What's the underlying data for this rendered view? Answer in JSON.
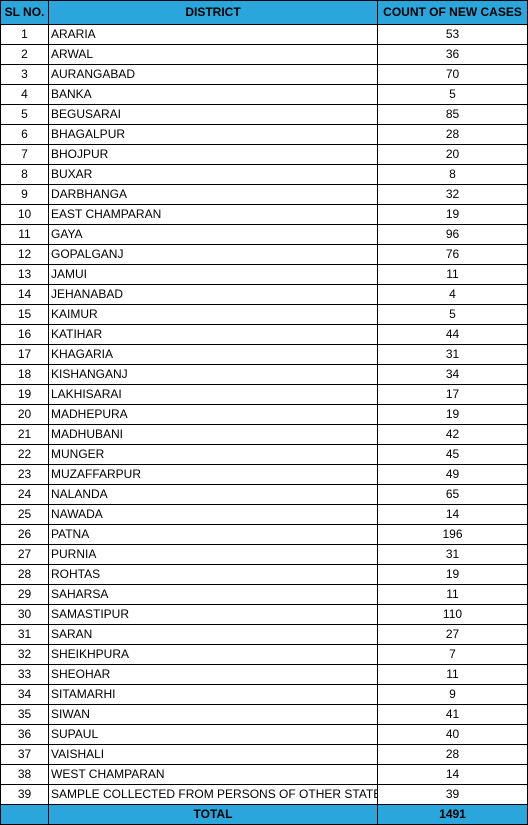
{
  "table": {
    "headers": {
      "sl": "SL NO.",
      "district": "DISTRICT",
      "count": "COUNT OF NEW CASES"
    },
    "rows": [
      {
        "sl": "1",
        "district": "ARARIA",
        "count": "53"
      },
      {
        "sl": "2",
        "district": "ARWAL",
        "count": "36"
      },
      {
        "sl": "3",
        "district": "AURANGABAD",
        "count": "70"
      },
      {
        "sl": "4",
        "district": "BANKA",
        "count": "5"
      },
      {
        "sl": "5",
        "district": "BEGUSARAI",
        "count": "85"
      },
      {
        "sl": "6",
        "district": "BHAGALPUR",
        "count": "28"
      },
      {
        "sl": "7",
        "district": "BHOJPUR",
        "count": "20"
      },
      {
        "sl": "8",
        "district": "BUXAR",
        "count": "8"
      },
      {
        "sl": "9",
        "district": "DARBHANGA",
        "count": "32"
      },
      {
        "sl": "10",
        "district": "EAST CHAMPARAN",
        "count": "19"
      },
      {
        "sl": "11",
        "district": "GAYA",
        "count": "96"
      },
      {
        "sl": "12",
        "district": "GOPALGANJ",
        "count": "76"
      },
      {
        "sl": "13",
        "district": "JAMUI",
        "count": "11"
      },
      {
        "sl": "14",
        "district": "JEHANABAD",
        "count": "4"
      },
      {
        "sl": "15",
        "district": "KAIMUR",
        "count": "5"
      },
      {
        "sl": "16",
        "district": "KATIHAR",
        "count": "44"
      },
      {
        "sl": "17",
        "district": "KHAGARIA",
        "count": "31"
      },
      {
        "sl": "18",
        "district": "KISHANGANJ",
        "count": "34"
      },
      {
        "sl": "19",
        "district": "LAKHISARAI",
        "count": "17"
      },
      {
        "sl": "20",
        "district": "MADHEPURA",
        "count": "19"
      },
      {
        "sl": "21",
        "district": "MADHUBANI",
        "count": "42"
      },
      {
        "sl": "22",
        "district": "MUNGER",
        "count": "45"
      },
      {
        "sl": "23",
        "district": "MUZAFFARPUR",
        "count": "49"
      },
      {
        "sl": "24",
        "district": "NALANDA",
        "count": "65"
      },
      {
        "sl": "25",
        "district": "NAWADA",
        "count": "14"
      },
      {
        "sl": "26",
        "district": "PATNA",
        "count": "196"
      },
      {
        "sl": "27",
        "district": "PURNIA",
        "count": "31"
      },
      {
        "sl": "28",
        "district": "ROHTAS",
        "count": "19"
      },
      {
        "sl": "29",
        "district": "SAHARSA",
        "count": "11"
      },
      {
        "sl": "30",
        "district": "SAMASTIPUR",
        "count": "110"
      },
      {
        "sl": "31",
        "district": "SARAN",
        "count": "27"
      },
      {
        "sl": "32",
        "district": "SHEIKHPURA",
        "count": "7"
      },
      {
        "sl": "33",
        "district": "SHEOHAR",
        "count": "11"
      },
      {
        "sl": "34",
        "district": "SITAMARHI",
        "count": "9"
      },
      {
        "sl": "35",
        "district": "SIWAN",
        "count": "41"
      },
      {
        "sl": "36",
        "district": "SUPAUL",
        "count": "40"
      },
      {
        "sl": "37",
        "district": "VAISHALI",
        "count": "28"
      },
      {
        "sl": "38",
        "district": "WEST CHAMPARAN",
        "count": "14"
      },
      {
        "sl": "39",
        "district": "SAMPLE COLLECTED FROM PERSONS OF OTHER STATE",
        "count": "39"
      }
    ],
    "total": {
      "label": "TOTAL",
      "value": "1491"
    }
  },
  "colors": {
    "header_fill": "#2aa6dc",
    "border": "#000000",
    "text": "#000000"
  }
}
